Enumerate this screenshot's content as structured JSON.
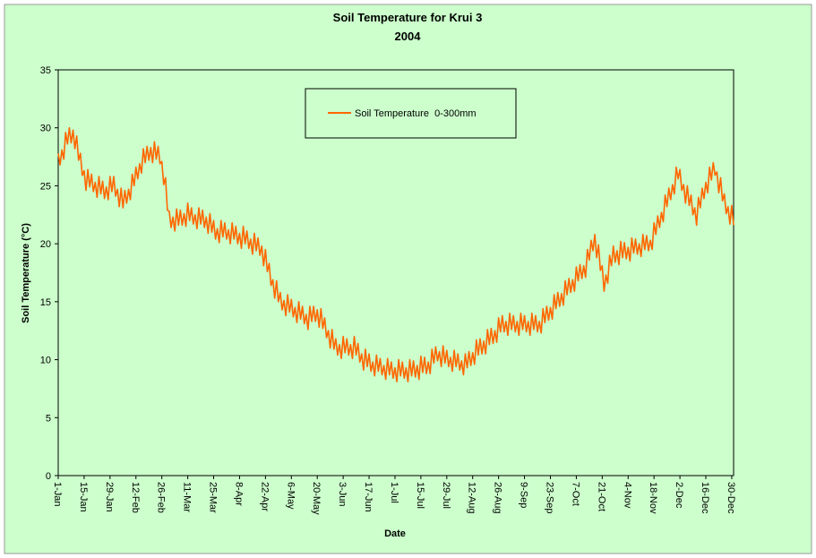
{
  "chart_data": {
    "type": "line",
    "title": "Soil Temperature for Krui 3",
    "subtitle": "2004",
    "x_label": "Date",
    "y_label": "Soil Temperature (°C)",
    "legend_position": "top",
    "ylim": [
      0,
      35
    ],
    "yticks": [
      0,
      5,
      10,
      15,
      20,
      25,
      30,
      35
    ],
    "categories": [
      "1-Jan",
      null,
      null,
      null,
      null,
      null,
      null,
      null,
      null,
      null,
      null,
      null,
      null,
      null,
      "15-Jan",
      null,
      null,
      null,
      null,
      null,
      null,
      null,
      null,
      null,
      null,
      null,
      null,
      null,
      "29-Jan",
      null,
      null,
      null,
      null,
      null,
      null,
      null,
      null,
      null,
      null,
      null,
      null,
      null,
      "12-Feb",
      null,
      null,
      null,
      null,
      null,
      null,
      null,
      null,
      null,
      null,
      null,
      null,
      null,
      "26-Feb",
      null,
      null,
      null,
      null,
      null,
      null,
      null,
      null,
      null,
      null,
      null,
      null,
      null,
      "11-Mar",
      null,
      null,
      null,
      null,
      null,
      null,
      null,
      null,
      null,
      null,
      null,
      null,
      null,
      "25-Mar",
      null,
      null,
      null,
      null,
      null,
      null,
      null,
      null,
      null,
      null,
      null,
      null,
      null,
      "8-Apr",
      null,
      null,
      null,
      null,
      null,
      null,
      null,
      null,
      null,
      null,
      null,
      null,
      null,
      "22-Apr",
      null,
      null,
      null,
      null,
      null,
      null,
      null,
      null,
      null,
      null,
      null,
      null,
      null,
      "6-May",
      null,
      null,
      null,
      null,
      null,
      null,
      null,
      null,
      null,
      null,
      null,
      null,
      null,
      "20-May",
      null,
      null,
      null,
      null,
      null,
      null,
      null,
      null,
      null,
      null,
      null,
      null,
      null,
      "3-Jun",
      null,
      null,
      null,
      null,
      null,
      null,
      null,
      null,
      null,
      null,
      null,
      null,
      null,
      "17-Jun",
      null,
      null,
      null,
      null,
      null,
      null,
      null,
      null,
      null,
      null,
      null,
      null,
      null,
      "1-Jul",
      null,
      null,
      null,
      null,
      null,
      null,
      null,
      null,
      null,
      null,
      null,
      null,
      null,
      "15-Jul",
      null,
      null,
      null,
      null,
      null,
      null,
      null,
      null,
      null,
      null,
      null,
      null,
      null,
      "29-Jul",
      null,
      null,
      null,
      null,
      null,
      null,
      null,
      null,
      null,
      null,
      null,
      null,
      null,
      "12-Aug",
      null,
      null,
      null,
      null,
      null,
      null,
      null,
      null,
      null,
      null,
      null,
      null,
      null,
      "26-Aug",
      null,
      null,
      null,
      null,
      null,
      null,
      null,
      null,
      null,
      null,
      null,
      null,
      null,
      "9-Sep",
      null,
      null,
      null,
      null,
      null,
      null,
      null,
      null,
      null,
      null,
      null,
      null,
      null,
      "23-Sep",
      null,
      null,
      null,
      null,
      null,
      null,
      null,
      null,
      null,
      null,
      null,
      null,
      null,
      "7-Oct",
      null,
      null,
      null,
      null,
      null,
      null,
      null,
      null,
      null,
      null,
      null,
      null,
      null,
      "21-Oct",
      null,
      null,
      null,
      null,
      null,
      null,
      null,
      null,
      null,
      null,
      null,
      null,
      null,
      "4-Nov",
      null,
      null,
      null,
      null,
      null,
      null,
      null,
      null,
      null,
      null,
      null,
      null,
      null,
      "18-Nov",
      null,
      null,
      null,
      null,
      null,
      null,
      null,
      null,
      null,
      null,
      null,
      null,
      null,
      "2-Dec",
      null,
      null,
      null,
      null,
      null,
      null,
      null,
      null,
      null,
      null,
      null,
      null,
      null,
      "16-Dec",
      null,
      null,
      null,
      null,
      null,
      null,
      null,
      null,
      null,
      null,
      null,
      null,
      null,
      "30-Dec",
      null
    ],
    "series": [
      {
        "name": "Soil Temperature  0-300mm",
        "color": "#ff6600",
        "values": [
          27.8,
          26.8,
          28.1,
          27.3,
          29.6,
          28.6,
          30.0,
          28.7,
          29.8,
          28.2,
          29.3,
          27.2,
          27.8,
          25.9,
          26.3,
          24.6,
          26.4,
          24.9,
          26.0,
          24.5,
          25.3,
          24.0,
          25.8,
          24.3,
          25.4,
          23.9,
          24.9,
          23.8,
          25.8,
          24.5,
          25.8,
          24.1,
          24.7,
          23.2,
          24.8,
          23.1,
          24.6,
          23.5,
          24.7,
          23.8,
          26.0,
          25.0,
          26.6,
          25.6,
          26.9,
          26.1,
          28.2,
          27.0,
          28.4,
          27.2,
          28.3,
          27.0,
          28.8,
          27.3,
          28.4,
          26.9,
          27.1,
          25.1,
          25.7,
          22.9,
          22.8,
          21.4,
          22.3,
          21.1,
          23.0,
          21.6,
          22.9,
          21.6,
          22.6,
          21.5,
          23.5,
          22.0,
          23.1,
          21.7,
          22.5,
          21.3,
          23.1,
          21.7,
          22.9,
          21.4,
          22.3,
          20.9,
          22.6,
          21.0,
          22.0,
          20.4,
          21.3,
          20.1,
          22.0,
          20.6,
          21.8,
          20.4,
          21.2,
          20.0,
          21.8,
          20.4,
          21.5,
          20.0,
          20.9,
          19.6,
          21.5,
          20.0,
          21.1,
          19.6,
          20.4,
          19.1,
          20.9,
          19.4,
          20.5,
          19.0,
          19.8,
          18.1,
          19.5,
          17.6,
          18.3,
          16.4,
          16.9,
          15.3,
          16.8,
          15.0,
          15.8,
          14.3,
          15.1,
          13.8,
          15.6,
          14.1,
          15.2,
          13.7,
          14.5,
          13.2,
          15.0,
          13.5,
          14.6,
          13.1,
          13.9,
          12.6,
          14.6,
          13.3,
          14.6,
          13.3,
          14.3,
          12.8,
          14.4,
          12.7,
          13.6,
          11.9,
          12.5,
          11.0,
          12.6,
          10.9,
          11.8,
          10.4,
          11.3,
          10.1,
          12.0,
          10.6,
          11.8,
          10.4,
          11.3,
          10.1,
          12.0,
          10.4,
          11.4,
          9.8,
          10.5,
          9.1,
          10.9,
          9.4,
          10.5,
          9.0,
          9.8,
          8.6,
          10.4,
          9.0,
          10.1,
          8.7,
          9.5,
          8.3,
          10.1,
          8.7,
          9.8,
          8.4,
          9.3,
          8.1,
          10.0,
          8.6,
          9.8,
          8.4,
          9.3,
          8.1,
          10.0,
          8.6,
          9.9,
          8.5,
          9.5,
          8.3,
          10.3,
          8.9,
          10.2,
          8.8,
          9.8,
          8.8,
          10.9,
          9.7,
          11.1,
          9.9,
          10.7,
          9.4,
          11.2,
          9.7,
          10.8,
          9.4,
          10.2,
          9.0,
          10.8,
          9.4,
          10.5,
          9.1,
          9.9,
          8.7,
          10.5,
          9.3,
          10.7,
          9.5,
          10.6,
          9.6,
          11.7,
          10.4,
          11.8,
          10.5,
          11.6,
          10.5,
          12.6,
          11.3,
          12.7,
          11.4,
          12.5,
          11.5,
          13.6,
          12.4,
          13.8,
          12.4,
          13.3,
          12.1,
          14.0,
          12.6,
          13.8,
          12.4,
          13.3,
          12.1,
          14.0,
          12.6,
          13.8,
          12.4,
          13.3,
          12.1,
          14.0,
          12.6,
          13.8,
          12.4,
          13.3,
          12.3,
          14.4,
          13.2,
          14.6,
          13.4,
          14.5,
          13.5,
          15.6,
          14.4,
          15.8,
          14.6,
          15.7,
          14.7,
          16.8,
          15.6,
          17.0,
          15.8,
          16.9,
          15.9,
          18.0,
          16.8,
          18.2,
          17.0,
          18.1,
          17.1,
          19.5,
          18.6,
          20.3,
          19.4,
          20.8,
          18.8,
          19.9,
          17.7,
          18.1,
          15.9,
          17.3,
          16.6,
          19.0,
          18.1,
          19.8,
          18.4,
          19.4,
          18.2,
          20.2,
          18.8,
          20.1,
          18.7,
          19.7,
          18.5,
          20.5,
          19.2,
          20.4,
          19.1,
          20.0,
          18.9,
          20.8,
          19.5,
          20.7,
          19.4,
          20.3,
          19.5,
          21.8,
          20.8,
          22.4,
          21.4,
          22.7,
          21.9,
          24.2,
          23.2,
          24.8,
          23.8,
          25.1,
          24.3,
          26.6,
          25.6,
          26.4,
          24.6,
          25.1,
          23.5,
          25.0,
          23.3,
          24.2,
          22.5,
          23.1,
          21.6,
          24.0,
          23.1,
          24.8,
          23.9,
          25.3,
          24.4,
          26.6,
          25.5,
          27.0,
          25.9,
          26.2,
          24.4,
          25.7,
          23.7,
          24.3,
          22.6,
          23.2,
          21.7,
          23.3,
          21.6
        ]
      }
    ]
  }
}
